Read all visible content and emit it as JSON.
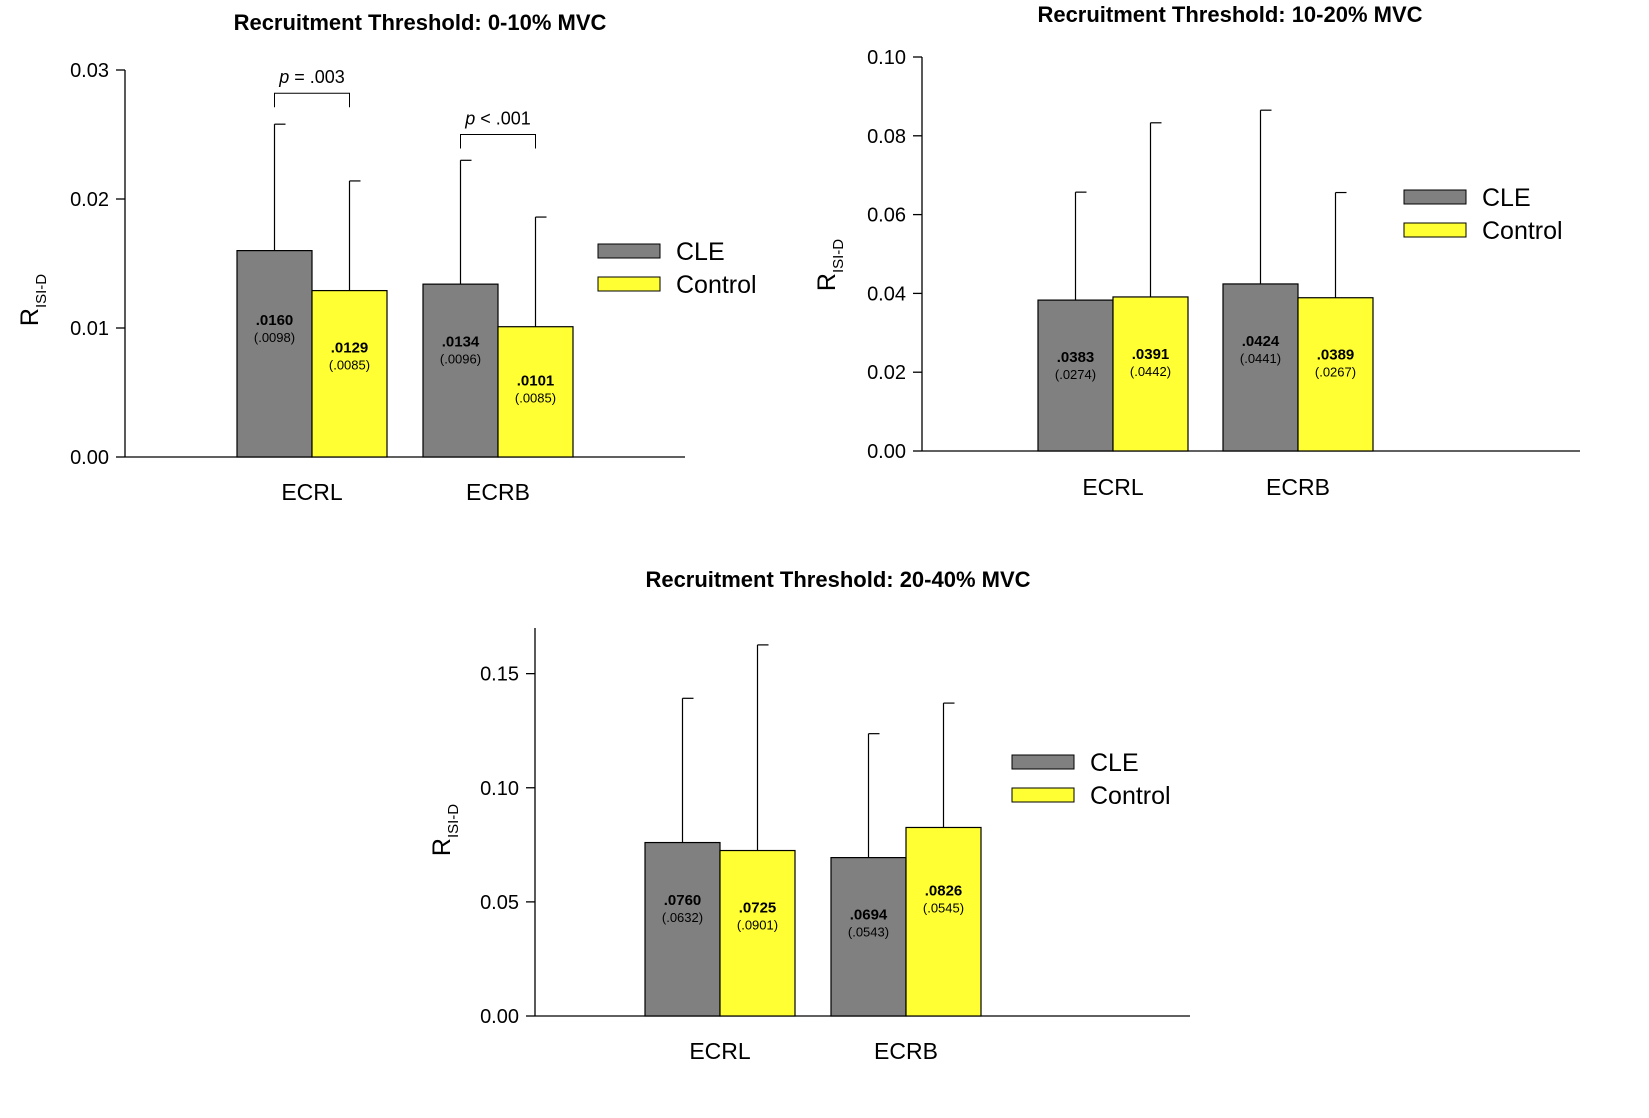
{
  "chart_data": [
    {
      "type": "bar",
      "title": "Recruitment Threshold: 0-10% MVC",
      "ylabel": "R",
      "ylabel_sub": "ISI-D",
      "categories": [
        "ECRL",
        "ECRB"
      ],
      "ylim": [
        0,
        0.03
      ],
      "yticks": [
        "0.00",
        "0.01",
        "0.02",
        "0.03"
      ],
      "ytick_values": [
        0,
        0.01,
        0.02,
        0.03
      ],
      "legend_position": "right",
      "series": [
        {
          "name": "CLE",
          "color": "#808080",
          "values": [
            0.016,
            0.0134
          ],
          "errors": [
            0.0098,
            0.0096
          ],
          "labels": [
            ".0160",
            ".0134"
          ],
          "sd_labels": [
            "(.0098)",
            "(.0096)"
          ]
        },
        {
          "name": "Control",
          "color": "#ffff33",
          "values": [
            0.0129,
            0.0101
          ],
          "errors": [
            0.0085,
            0.0085
          ],
          "labels": [
            ".0129",
            ".0101"
          ],
          "sd_labels": [
            "(.0085)",
            "(.0085)"
          ]
        }
      ],
      "annotations": [
        {
          "category": 0,
          "italic": "p",
          "rest": " = .003",
          "level": 0.0282
        },
        {
          "category": 1,
          "italic": "p",
          "rest": " < .001",
          "level": 0.025
        }
      ]
    },
    {
      "type": "bar",
      "title": "Recruitment Threshold: 10-20% MVC",
      "ylabel": "R",
      "ylabel_sub": "ISI-D",
      "categories": [
        "ECRL",
        "ECRB"
      ],
      "ylim": [
        0,
        0.1
      ],
      "yticks": [
        "0.00",
        "0.02",
        "0.04",
        "0.06",
        "0.08",
        "0.10"
      ],
      "ytick_values": [
        0,
        0.02,
        0.04,
        0.06,
        0.08,
        0.1
      ],
      "legend_position": "right",
      "series": [
        {
          "name": "CLE",
          "color": "#808080",
          "values": [
            0.0383,
            0.0424
          ],
          "errors": [
            0.0274,
            0.0441
          ],
          "labels": [
            ".0383",
            ".0424"
          ],
          "sd_labels": [
            "(.0274)",
            "(.0441)"
          ]
        },
        {
          "name": "Control",
          "color": "#ffff33",
          "values": [
            0.0391,
            0.0389
          ],
          "errors": [
            0.0442,
            0.0267
          ],
          "labels": [
            ".0391",
            ".0389"
          ],
          "sd_labels": [
            "(.0442)",
            "(.0267)"
          ]
        }
      ],
      "annotations": []
    },
    {
      "type": "bar",
      "title": "Recruitment Threshold: 20-40% MVC",
      "ylabel": "R",
      "ylabel_sub": "ISI-D",
      "categories": [
        "ECRL",
        "ECRB"
      ],
      "ylim": [
        0,
        0.17
      ],
      "yticks": [
        "0.00",
        "0.05",
        "0.10",
        "0.15"
      ],
      "ytick_values": [
        0,
        0.05,
        0.1,
        0.15
      ],
      "legend_position": "right",
      "series": [
        {
          "name": "CLE",
          "color": "#808080",
          "values": [
            0.076,
            0.0694
          ],
          "errors": [
            0.0632,
            0.0543
          ],
          "labels": [
            ".0760",
            ".0694"
          ],
          "sd_labels": [
            "(.0632)",
            "(.0543)"
          ]
        },
        {
          "name": "Control",
          "color": "#ffff33",
          "values": [
            0.0725,
            0.0826
          ],
          "errors": [
            0.0901,
            0.0545
          ],
          "labels": [
            ".0725",
            ".0826"
          ],
          "sd_labels": [
            "(.0901)",
            "(.0545)"
          ]
        }
      ],
      "annotations": []
    }
  ]
}
